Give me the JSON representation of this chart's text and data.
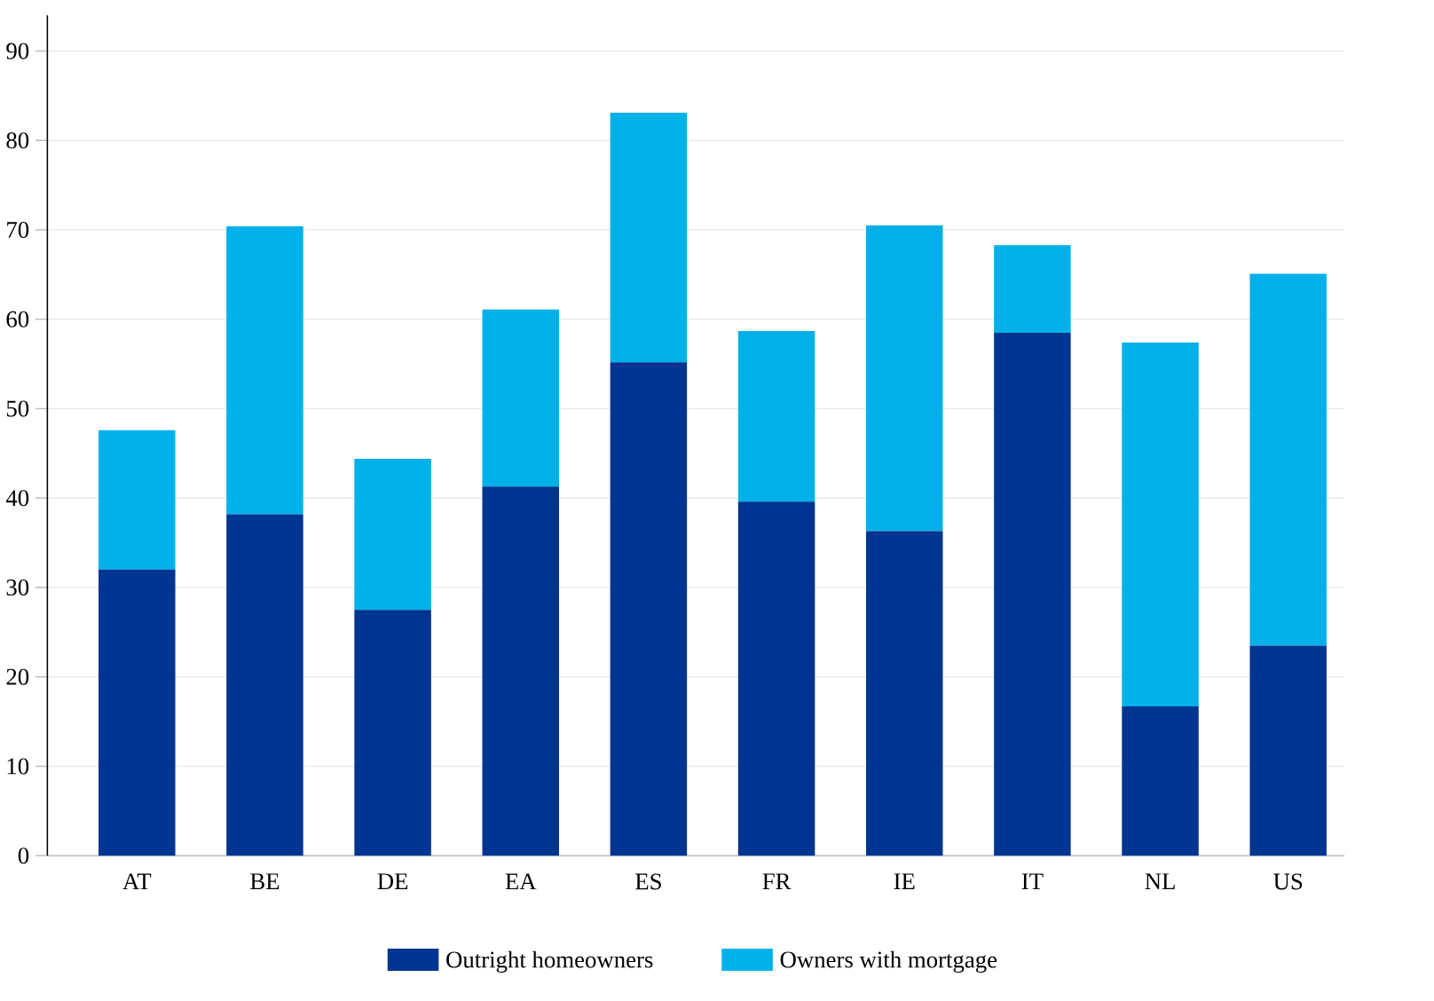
{
  "chart_data": {
    "type": "bar",
    "stacked": true,
    "categories": [
      "AT",
      "BE",
      "DE",
      "EA",
      "ES",
      "FR",
      "IE",
      "IT",
      "NL",
      "US"
    ],
    "series": [
      {
        "name": "Outright homeowners",
        "color": "#003591",
        "values": [
          32.0,
          38.2,
          27.5,
          41.3,
          55.2,
          39.6,
          36.3,
          58.5,
          16.7,
          23.5
        ]
      },
      {
        "name": "Owners with mortgage",
        "color": "#00b1e9",
        "values": [
          15.6,
          32.2,
          16.9,
          19.8,
          27.9,
          19.1,
          34.2,
          9.8,
          40.7,
          41.6
        ]
      }
    ],
    "ylim": [
      0,
      94
    ],
    "yticks": [
      0,
      10,
      20,
      30,
      40,
      50,
      60,
      70,
      80,
      90
    ],
    "grid": "y",
    "legend": "bottom"
  }
}
